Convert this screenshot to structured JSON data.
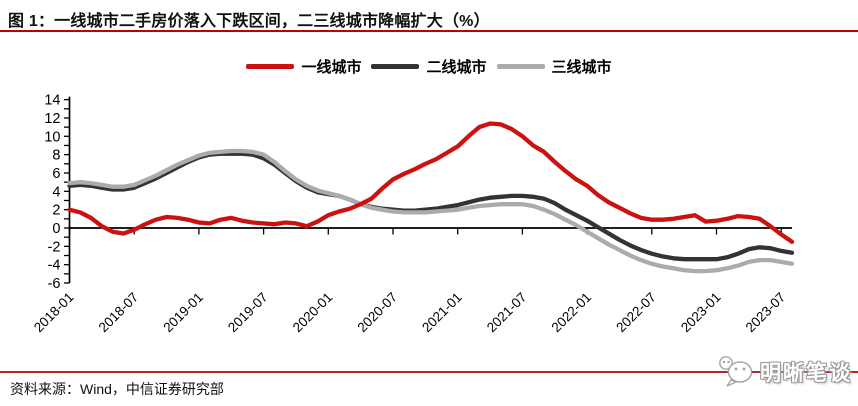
{
  "figure": {
    "title": "图 1：一线城市二手房价落入下跌区间，二三线城市降幅扩大（%）",
    "source": "资料来源：Wind，中信证券研究部",
    "watermark": "明晰笔谈"
  },
  "colors": {
    "title_rule": "#c00000",
    "bottom_rule": "#b02a2a",
    "axis": "#000000"
  },
  "chart_data": {
    "type": "line",
    "title": "一线城市二手房价落入下跌区间，二三线城市降幅扩大（%）",
    "xlabel": "",
    "ylabel": "",
    "x_start": "2018-01",
    "x_interval": "monthly",
    "x_points": 68,
    "x_tick_labels": [
      "2018-01",
      "2018-07",
      "2019-01",
      "2019-07",
      "2020-01",
      "2020-07",
      "2021-01",
      "2021-07",
      "2022-01",
      "2022-07",
      "2023-01",
      "2023-07"
    ],
    "ylim": [
      -6,
      14
    ],
    "y_major_step": 2,
    "y_minor_step": 1,
    "grid": "off",
    "legend_position": "top-center",
    "series": [
      {
        "name": "一线城市",
        "color": "#cc1111",
        "values": [
          2.0,
          1.7,
          1.1,
          0.2,
          -0.4,
          -0.6,
          -0.2,
          0.4,
          0.9,
          1.2,
          1.1,
          0.9,
          0.6,
          0.5,
          0.9,
          1.1,
          0.8,
          0.6,
          0.5,
          0.4,
          0.6,
          0.5,
          0.2,
          0.7,
          1.4,
          1.8,
          2.1,
          2.6,
          3.2,
          4.3,
          5.3,
          5.9,
          6.4,
          7.0,
          7.5,
          8.2,
          8.9,
          10.0,
          11.0,
          11.4,
          11.3,
          10.8,
          10.0,
          9.0,
          8.3,
          7.2,
          6.2,
          5.3,
          4.6,
          3.6,
          2.8,
          2.2,
          1.6,
          1.1,
          0.9,
          0.9,
          1.0,
          1.2,
          1.4,
          0.7,
          0.8,
          1.0,
          1.3,
          1.2,
          1.0,
          0.2,
          -0.7,
          -1.5
        ]
      },
      {
        "name": "二线城市",
        "color": "#333333",
        "values": [
          4.6,
          4.7,
          4.6,
          4.4,
          4.2,
          4.2,
          4.4,
          4.9,
          5.4,
          6.0,
          6.6,
          7.2,
          7.7,
          8.0,
          8.1,
          8.1,
          8.1,
          8.0,
          7.6,
          6.9,
          6.0,
          5.1,
          4.4,
          3.9,
          3.7,
          3.5,
          3.1,
          2.6,
          2.3,
          2.1,
          2.0,
          1.9,
          1.9,
          2.0,
          2.1,
          2.3,
          2.5,
          2.8,
          3.1,
          3.3,
          3.4,
          3.5,
          3.5,
          3.4,
          3.2,
          2.7,
          2.0,
          1.4,
          0.8,
          0.1,
          -0.6,
          -1.3,
          -1.9,
          -2.4,
          -2.8,
          -3.1,
          -3.3,
          -3.4,
          -3.4,
          -3.4,
          -3.4,
          -3.2,
          -2.8,
          -2.3,
          -2.1,
          -2.2,
          -2.5,
          -2.7
        ]
      },
      {
        "name": "三线城市",
        "color": "#ababab",
        "values": [
          4.9,
          5.0,
          4.9,
          4.7,
          4.5,
          4.5,
          4.7,
          5.2,
          5.7,
          6.3,
          6.9,
          7.4,
          7.9,
          8.2,
          8.3,
          8.4,
          8.4,
          8.3,
          8.0,
          7.2,
          6.2,
          5.3,
          4.6,
          4.1,
          3.8,
          3.5,
          3.1,
          2.6,
          2.2,
          2.0,
          1.8,
          1.7,
          1.7,
          1.7,
          1.8,
          1.9,
          2.0,
          2.2,
          2.4,
          2.5,
          2.6,
          2.6,
          2.6,
          2.4,
          2.0,
          1.5,
          0.9,
          0.3,
          -0.4,
          -1.1,
          -1.8,
          -2.4,
          -3.0,
          -3.5,
          -3.9,
          -4.2,
          -4.4,
          -4.6,
          -4.7,
          -4.7,
          -4.6,
          -4.4,
          -4.1,
          -3.7,
          -3.5,
          -3.5,
          -3.7,
          -3.9
        ]
      }
    ]
  }
}
